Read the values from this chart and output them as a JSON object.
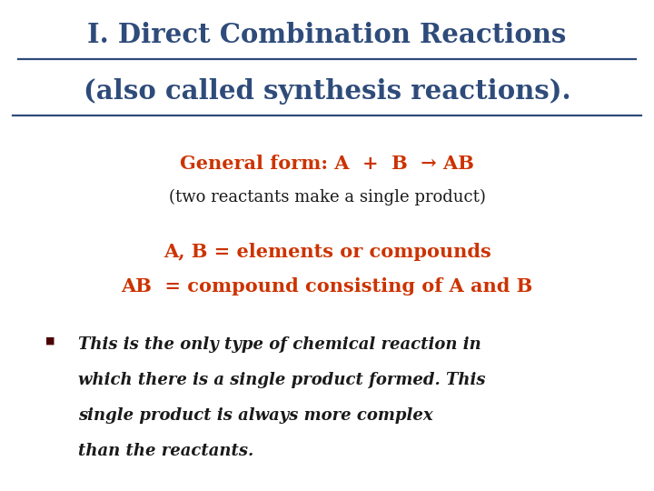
{
  "bg_color": "#ffffff",
  "title_line1": "I. Direct Combination Reactions",
  "title_line2": "(also called synthesis reactions).",
  "title_color": "#2E4B7A",
  "general_form_label": "General form: A  +  B  → AB",
  "general_form_color": "#CC3300",
  "sub_label": "(two reactants make a single product)",
  "sub_color": "#1a1a1a",
  "line3": "A, B = elements or compounds",
  "line4": "AB  = compound consisting of A and B",
  "lines34_color": "#CC3300",
  "bullet_lines": [
    "This is the only type of chemical reaction in",
    "which there is a single product formed. This",
    "single product is always more complex",
    "than the reactants."
  ],
  "bullet_color": "#1a1a1a",
  "bullet_marker_color": "#4a0000",
  "title_fontsize": 21,
  "general_form_fontsize": 15,
  "sub_fontsize": 13,
  "lines34_fontsize": 15,
  "bullet_fontsize": 13
}
